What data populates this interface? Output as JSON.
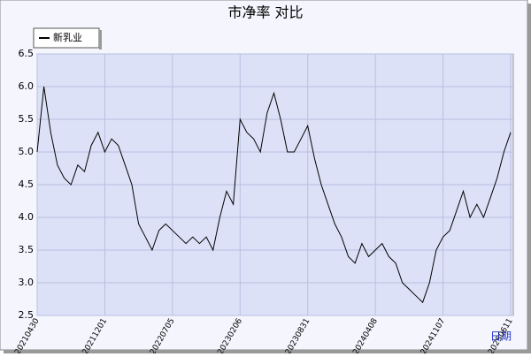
{
  "chart_data": {
    "type": "line",
    "title": "市净率  对比",
    "x_label": "日期",
    "categories": [
      "20210430",
      null,
      null,
      null,
      null,
      null,
      null,
      null,
      null,
      null,
      "20211201",
      null,
      null,
      null,
      null,
      null,
      null,
      null,
      null,
      null,
      "20220705",
      null,
      null,
      null,
      null,
      null,
      null,
      null,
      null,
      null,
      "20230206",
      null,
      null,
      null,
      null,
      null,
      null,
      null,
      null,
      null,
      "20230831",
      null,
      null,
      null,
      null,
      null,
      null,
      null,
      null,
      null,
      "20240408",
      null,
      null,
      null,
      null,
      null,
      null,
      null,
      null,
      null,
      "20241107",
      null,
      null,
      null,
      null,
      null,
      null,
      null,
      null,
      null,
      "20250611"
    ],
    "series": [
      {
        "name": "新乳业",
        "color": "#000000",
        "values": [
          5.0,
          6.0,
          5.3,
          4.8,
          4.6,
          4.5,
          4.8,
          4.7,
          5.1,
          5.3,
          5.0,
          5.2,
          5.1,
          4.8,
          4.5,
          3.9,
          3.7,
          3.5,
          3.8,
          3.9,
          3.8,
          3.7,
          3.6,
          3.7,
          3.6,
          3.7,
          3.5,
          4.0,
          4.4,
          4.2,
          5.5,
          5.3,
          5.2,
          5.0,
          5.6,
          5.9,
          5.5,
          5.0,
          5.0,
          5.2,
          5.4,
          4.9,
          4.5,
          4.2,
          3.9,
          3.7,
          3.4,
          3.3,
          3.6,
          3.4,
          3.5,
          3.6,
          3.4,
          3.3,
          3.0,
          2.9,
          2.8,
          2.7,
          3.0,
          3.5,
          3.7,
          3.8,
          4.1,
          4.4,
          4.0,
          4.2,
          4.0,
          4.3,
          4.6,
          5.0,
          5.3
        ]
      }
    ],
    "ylim": [
      2.5,
      6.5
    ],
    "yticks": [
      2.5,
      {
        "value": 3,
        "label": "3.0"
      },
      3.5,
      {
        "value": 4,
        "label": "4.0"
      },
      4.5,
      {
        "value": 5,
        "label": "5.0"
      },
      5.5,
      {
        "value": 6,
        "label": "6.0"
      },
      6.5
    ],
    "grid": true,
    "legend": "top-left"
  }
}
